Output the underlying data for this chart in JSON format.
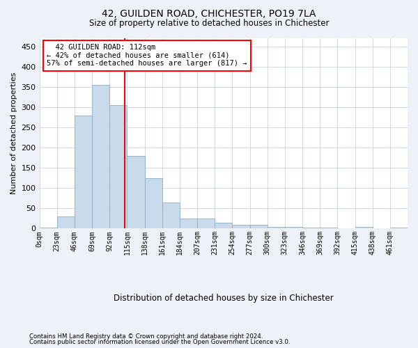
{
  "title_line1": "42, GUILDEN ROAD, CHICHESTER, PO19 7LA",
  "title_line2": "Size of property relative to detached houses in Chichester",
  "xlabel": "Distribution of detached houses by size in Chichester",
  "ylabel": "Number of detached properties",
  "bin_labels": [
    "0sqm",
    "23sqm",
    "46sqm",
    "69sqm",
    "92sqm",
    "115sqm",
    "138sqm",
    "161sqm",
    "184sqm",
    "207sqm",
    "231sqm",
    "254sqm",
    "277sqm",
    "300sqm",
    "323sqm",
    "346sqm",
    "369sqm",
    "392sqm",
    "415sqm",
    "438sqm",
    "461sqm"
  ],
  "bar_heights": [
    2,
    30,
    280,
    355,
    305,
    180,
    125,
    65,
    25,
    25,
    15,
    10,
    10,
    5,
    5,
    2,
    2,
    0,
    5,
    0,
    2
  ],
  "bar_color": "#c9daea",
  "bar_edge_color": "#8aaec8",
  "vline_color": "red",
  "annotation_text": "  42 GUILDEN ROAD: 112sqm\n← 42% of detached houses are smaller (614)\n57% of semi-detached houses are larger (817) →",
  "annotation_box_color": "white",
  "annotation_box_edge_color": "red",
  "ylim": [
    0,
    470
  ],
  "yticks": [
    0,
    50,
    100,
    150,
    200,
    250,
    300,
    350,
    400,
    450
  ],
  "footnote_line1": "Contains HM Land Registry data © Crown copyright and database right 2024.",
  "footnote_line2": "Contains public sector information licensed under the Open Government Licence v3.0.",
  "bg_color": "#eef2f8",
  "plot_bg_color": "#ffffff",
  "grid_color": "#ccd5e0"
}
